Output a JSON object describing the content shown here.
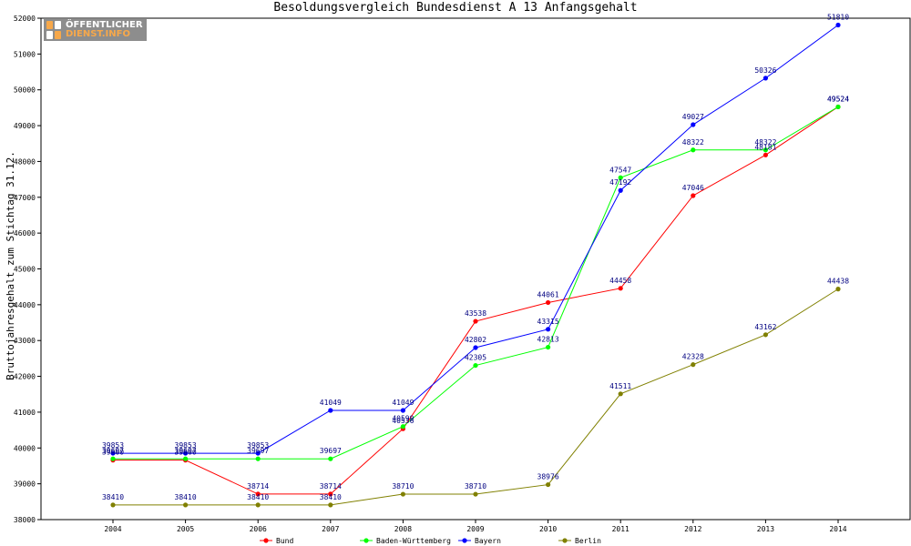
{
  "logo": {
    "line1": "ÖFFENTLICHER",
    "line2": "DIENST.INFO",
    "accent": "#f7a84a",
    "bg": "#8d8d8d"
  },
  "chart_data": {
    "type": "line",
    "title": "Besoldungsvergleich Bundesdienst A 13 Anfangsgehalt",
    "xlabel": "",
    "ylabel": "Bruttojahresgehalt zum Stichtag 31.12.",
    "categories": [
      "2004",
      "2005",
      "2006",
      "2007",
      "2008",
      "2009",
      "2010",
      "2011",
      "2012",
      "2013",
      "2014"
    ],
    "ylim": [
      38000,
      52000
    ],
    "yticks": [
      "38000",
      "39000",
      "40000",
      "41000",
      "42000",
      "43000",
      "44000",
      "45000",
      "46000",
      "47000",
      "48000",
      "49000",
      "50000",
      "51000",
      "52000"
    ],
    "grid": false,
    "legend": "bottom",
    "series": [
      {
        "name": "Bund",
        "color": "#ff0000",
        "values": [
          39660,
          39660,
          38714,
          38714,
          40536,
          43538,
          44061,
          44458,
          47046,
          48181,
          49524
        ],
        "labels": [
          "39660",
          "39660",
          "38714",
          "38714",
          "40536",
          "43538",
          "44061",
          "44458",
          "47046",
          "48181",
          "49524"
        ]
      },
      {
        "name": "Baden-Württemberg",
        "color": "#00ff00",
        "values": [
          39697,
          39697,
          39697,
          39697,
          40599,
          42305,
          42813,
          47547,
          48322,
          48322,
          49524
        ],
        "labels": [
          "39697",
          "39697",
          "39697",
          "39697",
          "40599",
          "42305",
          "42813",
          "47547",
          "48322",
          "48322",
          "49524"
        ]
      },
      {
        "name": "Bayern",
        "color": "#0000ff",
        "values": [
          39853,
          39853,
          39853,
          41049,
          41049,
          42802,
          43315,
          47192,
          49027,
          50326,
          51810
        ],
        "labels": [
          "39853",
          "39853",
          "39853",
          "41049",
          "41049",
          "42802",
          "43315",
          "47192",
          "49027",
          "50326",
          "51810"
        ]
      },
      {
        "name": "Berlin",
        "color": "#808000",
        "values": [
          38410,
          38410,
          38410,
          38410,
          38710,
          38710,
          38976,
          41511,
          42328,
          43162,
          44438
        ],
        "labels": [
          "38410",
          "38410",
          "38410",
          "38410",
          "38710",
          "38710",
          "38976",
          "41511",
          "42328",
          "43162",
          "44438"
        ]
      }
    ]
  }
}
